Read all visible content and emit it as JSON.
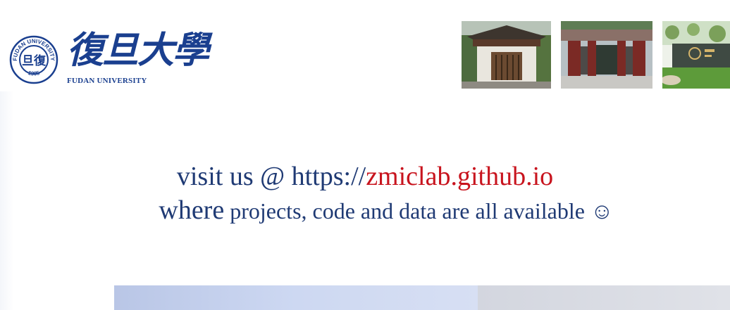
{
  "logo": {
    "cn_text": "復旦大學",
    "en_text": "FUDAN UNIVERSITY",
    "seal_text_top": "FUDAN UNIVERSITY",
    "seal_text_bottom": "1905",
    "seal_center": "旦復"
  },
  "photos": [
    {
      "name": "campus-gate-photo"
    },
    {
      "name": "campus-entrance-photo"
    },
    {
      "name": "campus-stone-photo"
    }
  ],
  "message": {
    "line1_prefix": "visit us @ https://",
    "line1_link": "zmiclab.github.io",
    "line2_where": "where",
    "line2_rest": " projects, code and data are all available ☺"
  },
  "colors": {
    "text": "#1f3a74",
    "link": "#c8141e",
    "logo": "#1a3f8f"
  }
}
